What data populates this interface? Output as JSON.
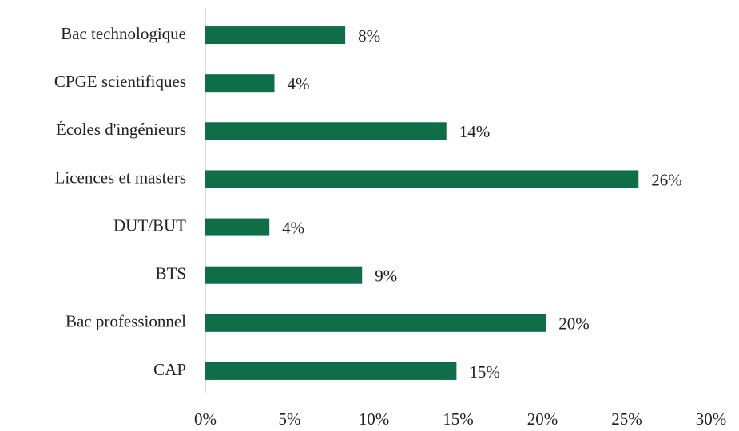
{
  "chart_data": {
    "type": "hbar",
    "categories": [
      "Bac technologique",
      "CPGE scientifiques",
      "Écoles d'ingénieurs",
      "Licences et masters",
      "DUT/BUT",
      "BTS",
      "Bac professionnel",
      "CAP"
    ],
    "values": [
      8.3,
      4.1,
      14.3,
      25.7,
      3.8,
      9.3,
      20.2,
      14.9
    ],
    "value_labels": [
      "8%",
      "4%",
      "14%",
      "26%",
      "4%",
      "9%",
      "20%",
      "15%"
    ],
    "color": "#0f6e47",
    "xlim": [
      0,
      30
    ],
    "xticks": [
      {
        "value": 0,
        "label": "0%"
      },
      {
        "value": 5,
        "label": "5%"
      },
      {
        "value": 10,
        "label": "10%"
      },
      {
        "value": 15,
        "label": "15%"
      },
      {
        "value": 20,
        "label": "20%"
      },
      {
        "value": 25,
        "label": "25%"
      },
      {
        "value": 30,
        "label": "30%"
      }
    ],
    "grid": false
  }
}
